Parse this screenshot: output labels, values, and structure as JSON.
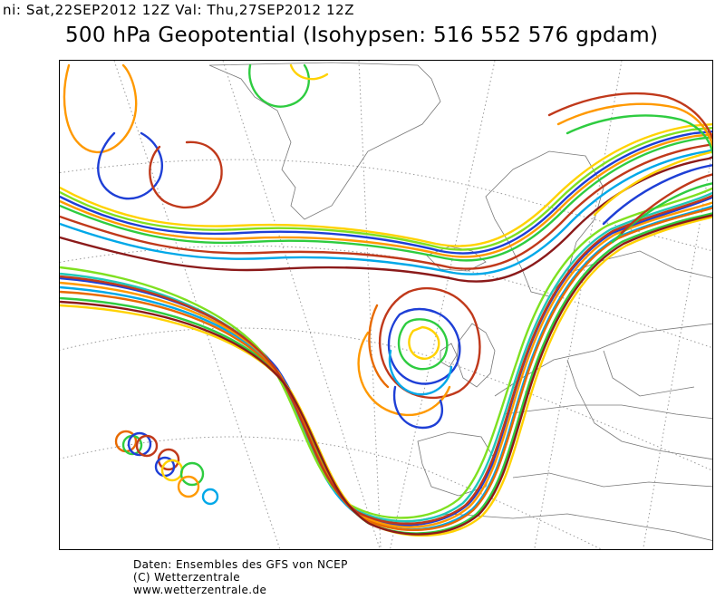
{
  "header": {
    "init_valid_line": "ni: Sat,22SEP2012 12Z Val: Thu,27SEP2012 12Z",
    "title": "500 hPa Geopotential (Isohypsen: 516 552 576 gpdam)"
  },
  "map": {
    "projection": "polar-stereographic",
    "region": "North Atlantic / Europe / Greenland",
    "contour_levels_gpdam": [
      516,
      552,
      576
    ],
    "member_colors": [
      "#1e3fd6",
      "#00a8e8",
      "#20c7b8",
      "#2ecc40",
      "#7fe020",
      "#ffd200",
      "#ff9900",
      "#e86a00",
      "#c0391b",
      "#8b1a1a"
    ],
    "icon": "map-graticule"
  },
  "footer": {
    "line1": "Daten: Ensembles des GFS von NCEP",
    "line2": "(C) Wetterzentrale",
    "line3": "www.wetterzentrale.de"
  }
}
